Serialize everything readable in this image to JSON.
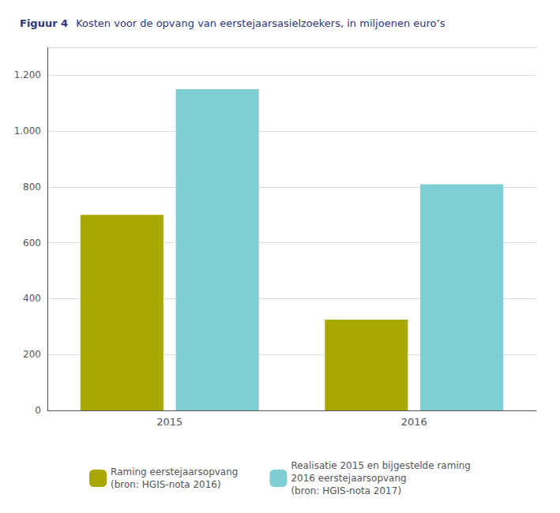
{
  "chart_data": {
    "type": "bar",
    "title": "Figuur 4",
    "subtitle": "Kosten voor de opvang van eerstejaarsasielzoekers, in miljoenen euro’s",
    "categories": [
      "2015",
      "2016"
    ],
    "series": [
      {
        "name": "Raming eerstejaarsopvang\n(bron: HGIS-nota 2016)",
        "color": "#a8a800",
        "values": [
          700,
          325
        ]
      },
      {
        "name": "Realisatie 2015 en bijgestelde raming\n2016 eerstejaarsopvang\n(bron: HGIS-nota 2017)",
        "color": "#7ecfd4",
        "values": [
          1150,
          810
        ]
      }
    ],
    "ylim": [
      0,
      1300
    ],
    "yticks": [
      0,
      200,
      400,
      600,
      800,
      {
        "value": 1000,
        "label": "1.000"
      },
      {
        "value": 1200,
        "label": "1.200"
      }
    ],
    "grid": true,
    "legend": "bottom"
  }
}
